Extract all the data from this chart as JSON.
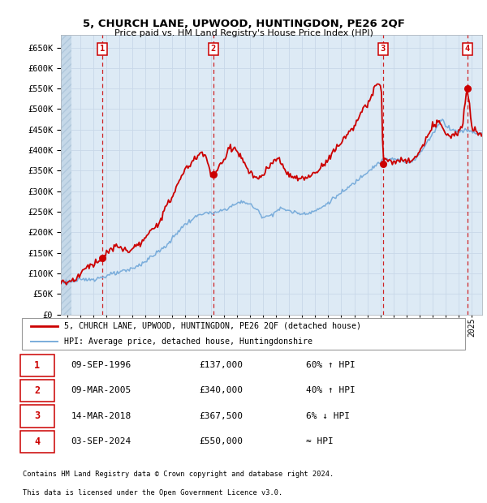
{
  "title": "5, CHURCH LANE, UPWOOD, HUNTINGDON, PE26 2QF",
  "subtitle": "Price paid vs. HM Land Registry's House Price Index (HPI)",
  "legend_line1": "5, CHURCH LANE, UPWOOD, HUNTINGDON, PE26 2QF (detached house)",
  "legend_line2": "HPI: Average price, detached house, Huntingdonshire",
  "footer1": "Contains HM Land Registry data © Crown copyright and database right 2024.",
  "footer2": "This data is licensed under the Open Government Licence v3.0.",
  "transactions": [
    {
      "label": "1",
      "date_num": 1996.69,
      "price": 137000,
      "date_str": "09-SEP-1996",
      "note": "60% ↑ HPI"
    },
    {
      "label": "2",
      "date_num": 2005.19,
      "price": 340000,
      "date_str": "09-MAR-2005",
      "note": "40% ↑ HPI"
    },
    {
      "label": "3",
      "date_num": 2018.2,
      "price": 367500,
      "date_str": "14-MAR-2018",
      "note": "6% ↓ HPI"
    },
    {
      "label": "4",
      "date_num": 2024.67,
      "price": 550000,
      "date_str": "03-SEP-2024",
      "note": "≈ HPI"
    }
  ],
  "hpi_color": "#7aaddb",
  "price_color": "#cc0000",
  "dot_color": "#cc0000",
  "vline_color": "#cc0000",
  "box_color": "#cc0000",
  "grid_color": "#c8d8e8",
  "bg_color": "#ddeaf5",
  "ylim": [
    0,
    680000
  ],
  "xlim": [
    1993.5,
    2025.8
  ],
  "table_rows": [
    [
      "1",
      "09-SEP-1996",
      "£137,000",
      "60% ↑ HPI"
    ],
    [
      "2",
      "09-MAR-2005",
      "£340,000",
      "40% ↑ HPI"
    ],
    [
      "3",
      "14-MAR-2018",
      "£367,500",
      "6% ↓ HPI"
    ],
    [
      "4",
      "03-SEP-2024",
      "£550,000",
      "≈ HPI"
    ]
  ]
}
